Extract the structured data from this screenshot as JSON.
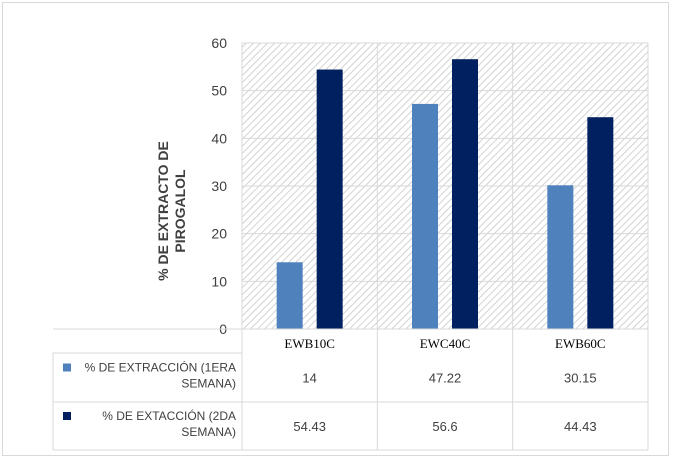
{
  "chart_data": {
    "type": "bar",
    "categories": [
      "EWB10C",
      "EWC40C",
      "EWB60C"
    ],
    "series": [
      {
        "name": "% DE EXTRACCIÓN (1ERA SEMANA)",
        "values": [
          14,
          47.22,
          30.15
        ],
        "color": "#4f81bd"
      },
      {
        "name": "% DE EXTACCIÓN (2DA SEMANA)",
        "values": [
          54.43,
          56.6,
          44.43
        ],
        "color": "#002060"
      }
    ],
    "data_labels": [
      [
        "14",
        "47.22",
        "30.15"
      ],
      [
        "54.43",
        "56.6",
        "44.43"
      ]
    ],
    "legend_lines": [
      [
        "% DE EXTRACCIÓN (1ERA",
        "SEMANA)"
      ],
      [
        "% DE EXTACCIÓN (2DA",
        "SEMANA)"
      ]
    ],
    "ylabel": [
      "% DE EXTRACTO DE",
      "PIROGALOL"
    ],
    "xlabel": "",
    "title": "",
    "ylim": [
      0,
      60
    ],
    "yticks": [
      0,
      10,
      20,
      30,
      40,
      50,
      60
    ],
    "grid": true,
    "plot_fill": "diagonal-hatch",
    "legend_placement": "data-table"
  }
}
